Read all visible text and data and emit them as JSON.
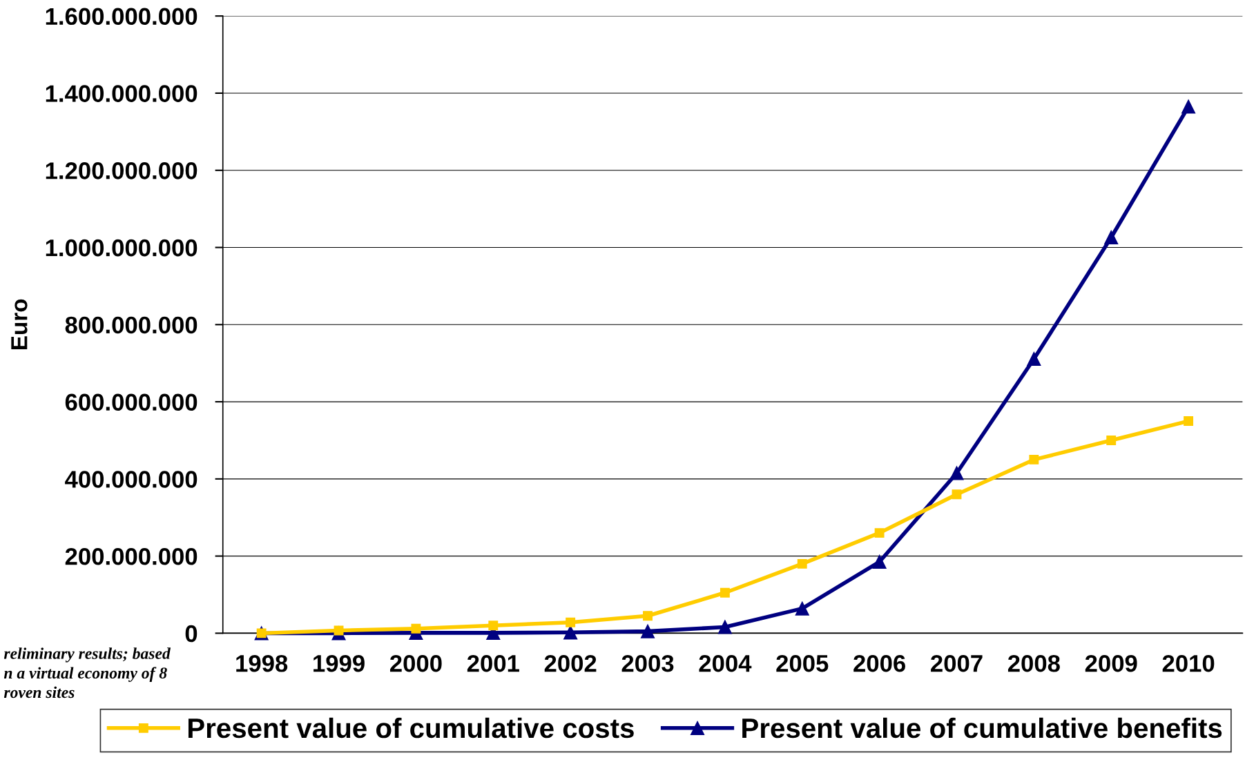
{
  "chart_data": {
    "type": "line",
    "ylabel": "Euro",
    "categories": [
      "1998",
      "1999",
      "2000",
      "2001",
      "2002",
      "2003",
      "2004",
      "2005",
      "2006",
      "2007",
      "2008",
      "2009",
      "2010"
    ],
    "series": [
      {
        "name": "Present value of cumulative costs",
        "color": "#ffcc00",
        "marker": "square",
        "values": [
          0,
          7000000,
          12000000,
          20000000,
          28000000,
          45000000,
          105000000,
          180000000,
          260000000,
          360000000,
          450000000,
          500000000,
          550000000
        ]
      },
      {
        "name": "Present value of cumulative benefits",
        "color": "#000080",
        "marker": "triangle",
        "values": [
          0,
          0,
          1000000,
          1000000,
          2000000,
          5000000,
          16000000,
          64000000,
          185000000,
          415000000,
          711000000,
          1026000000,
          1365000000
        ]
      }
    ],
    "ylim": [
      0,
      1600000000
    ],
    "yticks": [
      {
        "value": 0,
        "label": "0"
      },
      {
        "value": 200000000,
        "label": "200.000.000"
      },
      {
        "value": 400000000,
        "label": "400.000.000"
      },
      {
        "value": 600000000,
        "label": "600.000.000"
      },
      {
        "value": 800000000,
        "label": "800.000.000"
      },
      {
        "value": 1000000000,
        "label": "1.000.000.000"
      },
      {
        "value": 1200000000,
        "label": "1.200.000.000"
      },
      {
        "value": 1400000000,
        "label": "1.400.000.000"
      },
      {
        "value": 1600000000,
        "label": "1.600.000.000"
      }
    ],
    "grid": "y",
    "legend": "bottom",
    "line_style": "solid",
    "annotations": [
      "reliminary results; based\nn a virtual economy of 8\nroven sites"
    ]
  }
}
